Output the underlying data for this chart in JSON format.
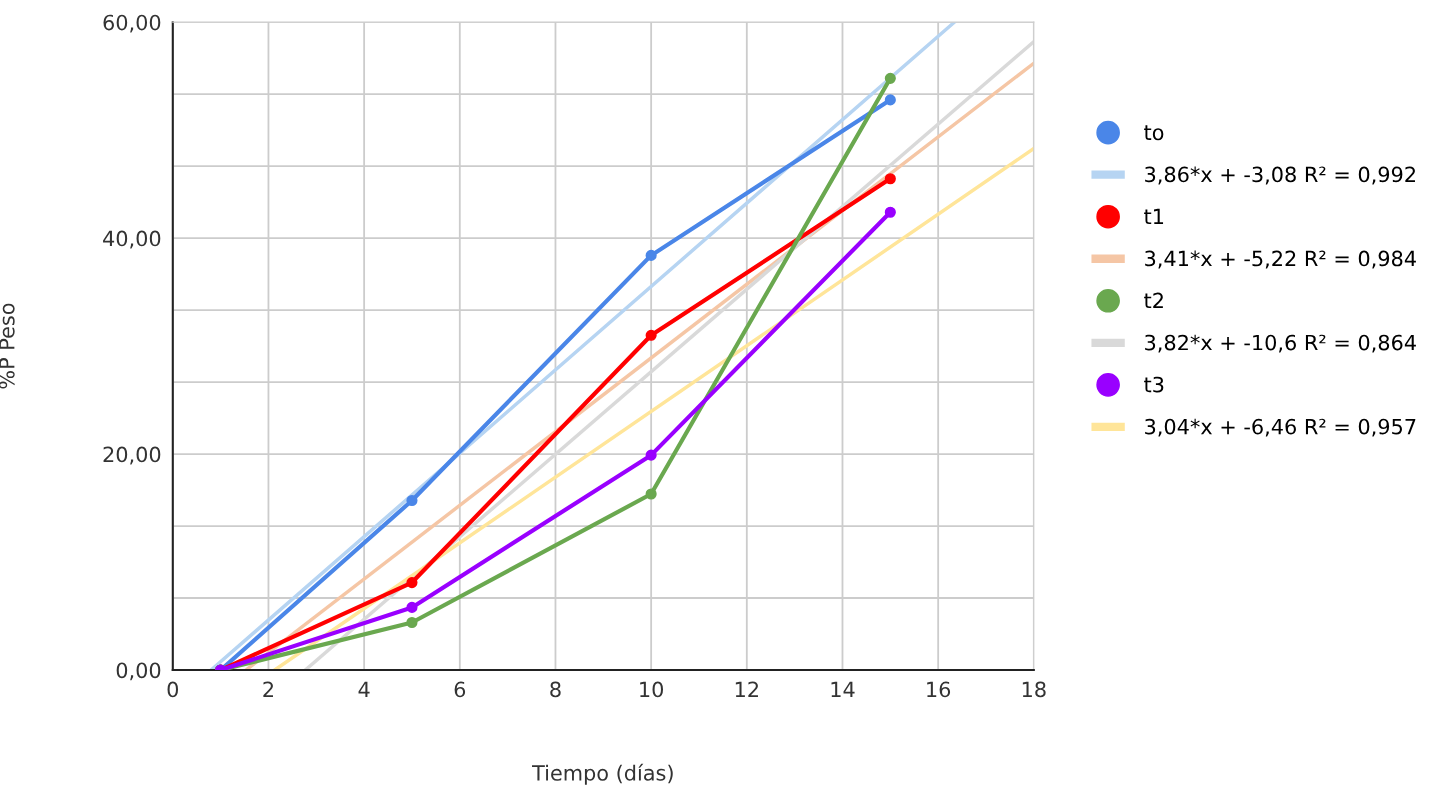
{
  "chart_data": {
    "type": "line",
    "xlabel": "Tiempo (días)",
    "ylabel": "%P Peso",
    "xlim": [
      0,
      18
    ],
    "xticks": [
      0,
      2,
      4,
      6,
      8,
      10,
      12,
      14,
      16,
      18
    ],
    "ylim": [
      0,
      60
    ],
    "yticks": [
      {
        "value": 0,
        "label": "0,00"
      },
      {
        "value": 6.67,
        "label": null
      },
      {
        "value": 13.33,
        "label": null
      },
      {
        "value": 20,
        "label": "20,00"
      },
      {
        "value": 26.67,
        "label": null
      },
      {
        "value": 33.33,
        "label": null
      },
      {
        "value": 40,
        "label": "40,00"
      },
      {
        "value": 46.67,
        "label": null
      },
      {
        "value": 53.33,
        "label": null
      },
      {
        "value": 60,
        "label": "60,00"
      }
    ],
    "grid": true,
    "legend": "right",
    "marker": "circle",
    "line_style": "solid",
    "series": [
      {
        "name": "to",
        "color": "#4a86e8",
        "x": [
          1,
          5,
          10,
          15
        ],
        "values": [
          0,
          15.7,
          38.4,
          52.8
        ]
      },
      {
        "name": "3,86*x + -3,08 R² = 0,992",
        "color": "#b6d4f2",
        "marker": "none",
        "x": [
          0.8,
          16.34
        ],
        "values": [
          0,
          60
        ]
      },
      {
        "name": "t1",
        "color": "#ff0000",
        "x": [
          1,
          5,
          10,
          15
        ],
        "values": [
          0,
          8.1,
          31.0,
          45.5
        ]
      },
      {
        "name": "3,41*x + -5,22 R² = 0,984",
        "color": "#f5c6a5",
        "marker": "none",
        "x": [
          1.53,
          18
        ],
        "values": [
          0,
          56.2
        ]
      },
      {
        "name": "t2",
        "color": "#6aa84f",
        "x": [
          1,
          5,
          10,
          15
        ],
        "values": [
          0,
          4.4,
          16.3,
          54.8
        ]
      },
      {
        "name": "3,82*x + -10,6 R² = 0,864",
        "color": "#d9d9d9",
        "marker": "none",
        "x": [
          2.77,
          18
        ],
        "values": [
          0,
          58.2
        ]
      },
      {
        "name": "t3",
        "color": "#9900ff",
        "x": [
          1,
          5,
          10,
          15
        ],
        "values": [
          0,
          5.8,
          19.9,
          42.4
        ]
      },
      {
        "name": "3,04*x + -6,46 R² = 0,957",
        "color": "#ffe599",
        "marker": "none",
        "x": [
          2.13,
          18
        ],
        "values": [
          0,
          48.3
        ]
      }
    ]
  }
}
